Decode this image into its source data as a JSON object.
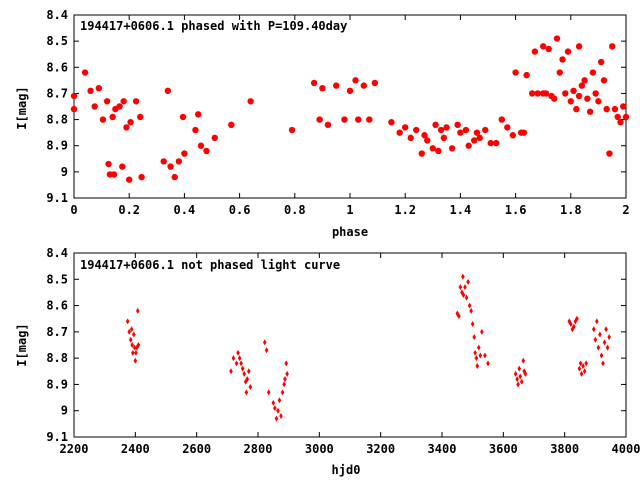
{
  "chart_data": [
    {
      "type": "scatter",
      "title": "194417+0606.1 phased with P=109.40day",
      "xlabel": "phase",
      "ylabel": "I[mag]",
      "xlim": [
        0,
        2
      ],
      "ylim": [
        8.4,
        9.1
      ],
      "y_inverted": true,
      "xticks": [
        "0",
        "0.2",
        "0.4",
        "0.6",
        "0.8",
        "1",
        "1.2",
        "1.4",
        "1.6",
        "1.8",
        "2"
      ],
      "xtick_values": [
        0,
        0.2,
        0.4,
        0.6,
        0.8,
        1.0,
        1.2,
        1.4,
        1.6,
        1.8,
        2.0
      ],
      "yticks": [
        "8.4",
        "8.5",
        "8.6",
        "8.7",
        "8.8",
        "8.9",
        "9",
        "9.1"
      ],
      "ytick_values": [
        8.4,
        8.5,
        8.6,
        8.7,
        8.8,
        8.9,
        9.0,
        9.1
      ],
      "marker": "filled-circle",
      "color": "#ff0000",
      "points": [
        [
          0.0,
          8.71
        ],
        [
          0.0,
          8.76
        ],
        [
          0.04,
          8.62
        ],
        [
          0.06,
          8.69
        ],
        [
          0.075,
          8.75
        ],
        [
          0.09,
          8.68
        ],
        [
          0.105,
          8.8
        ],
        [
          0.12,
          8.73
        ],
        [
          0.125,
          8.97
        ],
        [
          0.13,
          9.01
        ],
        [
          0.14,
          8.79
        ],
        [
          0.145,
          9.01
        ],
        [
          0.15,
          8.76
        ],
        [
          0.165,
          8.75
        ],
        [
          0.175,
          8.98
        ],
        [
          0.18,
          8.73
        ],
        [
          0.19,
          8.83
        ],
        [
          0.2,
          9.03
        ],
        [
          0.205,
          8.81
        ],
        [
          0.225,
          8.73
        ],
        [
          0.24,
          8.79
        ],
        [
          0.245,
          9.02
        ],
        [
          0.325,
          8.96
        ],
        [
          0.34,
          8.69
        ],
        [
          0.35,
          8.98
        ],
        [
          0.365,
          9.02
        ],
        [
          0.38,
          8.96
        ],
        [
          0.395,
          8.79
        ],
        [
          0.4,
          8.93
        ],
        [
          0.44,
          8.84
        ],
        [
          0.45,
          8.78
        ],
        [
          0.46,
          8.9
        ],
        [
          0.48,
          8.92
        ],
        [
          0.51,
          8.87
        ],
        [
          0.57,
          8.82
        ],
        [
          0.64,
          8.73
        ],
        [
          0.79,
          8.84
        ],
        [
          0.87,
          8.66
        ],
        [
          0.89,
          8.8
        ],
        [
          0.9,
          8.68
        ],
        [
          0.92,
          8.82
        ],
        [
          0.95,
          8.67
        ],
        [
          0.98,
          8.8
        ],
        [
          1.0,
          8.69
        ],
        [
          1.02,
          8.65
        ],
        [
          1.03,
          8.8
        ],
        [
          1.05,
          8.67
        ],
        [
          1.07,
          8.8
        ],
        [
          1.09,
          8.66
        ],
        [
          1.15,
          8.81
        ],
        [
          1.18,
          8.85
        ],
        [
          1.2,
          8.83
        ],
        [
          1.22,
          8.87
        ],
        [
          1.24,
          8.84
        ],
        [
          1.26,
          8.93
        ],
        [
          1.27,
          8.86
        ],
        [
          1.28,
          8.88
        ],
        [
          1.3,
          8.91
        ],
        [
          1.31,
          8.82
        ],
        [
          1.32,
          8.92
        ],
        [
          1.33,
          8.84
        ],
        [
          1.34,
          8.87
        ],
        [
          1.35,
          8.83
        ],
        [
          1.37,
          8.91
        ],
        [
          1.39,
          8.82
        ],
        [
          1.4,
          8.85
        ],
        [
          1.42,
          8.84
        ],
        [
          1.43,
          8.9
        ],
        [
          1.45,
          8.88
        ],
        [
          1.46,
          8.85
        ],
        [
          1.47,
          8.87
        ],
        [
          1.49,
          8.84
        ],
        [
          1.51,
          8.89
        ],
        [
          1.53,
          8.89
        ],
        [
          1.55,
          8.8
        ],
        [
          1.57,
          8.83
        ],
        [
          1.59,
          8.86
        ],
        [
          1.6,
          8.62
        ],
        [
          1.62,
          8.85
        ],
        [
          1.63,
          8.85
        ],
        [
          1.64,
          8.63
        ],
        [
          1.66,
          8.7
        ],
        [
          1.67,
          8.54
        ],
        [
          1.68,
          8.7
        ],
        [
          1.7,
          8.52
        ],
        [
          1.7,
          8.7
        ],
        [
          1.71,
          8.7
        ],
        [
          1.72,
          8.53
        ],
        [
          1.73,
          8.71
        ],
        [
          1.74,
          8.72
        ],
        [
          1.75,
          8.49
        ],
        [
          1.76,
          8.62
        ],
        [
          1.77,
          8.57
        ],
        [
          1.78,
          8.7
        ],
        [
          1.79,
          8.54
        ],
        [
          1.8,
          8.73
        ],
        [
          1.81,
          8.69
        ],
        [
          1.82,
          8.76
        ],
        [
          1.83,
          8.52
        ],
        [
          1.83,
          8.71
        ],
        [
          1.84,
          8.67
        ],
        [
          1.85,
          8.65
        ],
        [
          1.86,
          8.72
        ],
        [
          1.87,
          8.77
        ],
        [
          1.88,
          8.62
        ],
        [
          1.89,
          8.7
        ],
        [
          1.9,
          8.73
        ],
        [
          1.91,
          8.58
        ],
        [
          1.92,
          8.65
        ],
        [
          1.93,
          8.76
        ],
        [
          1.94,
          8.93
        ],
        [
          1.95,
          8.52
        ],
        [
          1.96,
          8.76
        ],
        [
          1.97,
          8.79
        ],
        [
          1.98,
          8.81
        ],
        [
          1.99,
          8.75
        ],
        [
          2.0,
          8.79
        ]
      ]
    },
    {
      "type": "scatter",
      "title": "194417+0606.1 not phased light curve",
      "xlabel": "hjd0",
      "ylabel": "I[mag]",
      "xlim": [
        2200,
        4000
      ],
      "ylim": [
        8.4,
        9.1
      ],
      "y_inverted": true,
      "xticks": [
        "2200",
        "2400",
        "2600",
        "2800",
        "3000",
        "3200",
        "3400",
        "3600",
        "3800",
        "4000"
      ],
      "xtick_values": [
        2200,
        2400,
        2600,
        2800,
        3000,
        3200,
        3400,
        3600,
        3800,
        4000
      ],
      "yticks": [
        "8.4",
        "8.5",
        "8.6",
        "8.7",
        "8.8",
        "8.9",
        "9",
        "9.1"
      ],
      "ytick_values": [
        8.4,
        8.5,
        8.6,
        8.7,
        8.8,
        8.9,
        9.0,
        9.1
      ],
      "marker": "small-diamond",
      "color": "#ff0000",
      "points": [
        [
          2375,
          8.66
        ],
        [
          2380,
          8.7
        ],
        [
          2385,
          8.73
        ],
        [
          2388,
          8.69
        ],
        [
          2390,
          8.75
        ],
        [
          2392,
          8.78
        ],
        [
          2395,
          8.71
        ],
        [
          2398,
          8.76
        ],
        [
          2400,
          8.81
        ],
        [
          2402,
          8.78
        ],
        [
          2405,
          8.76
        ],
        [
          2408,
          8.62
        ],
        [
          2410,
          8.75
        ],
        [
          2712,
          8.85
        ],
        [
          2720,
          8.8
        ],
        [
          2730,
          8.82
        ],
        [
          2735,
          8.78
        ],
        [
          2740,
          8.8
        ],
        [
          2745,
          8.82
        ],
        [
          2750,
          8.84
        ],
        [
          2755,
          8.86
        ],
        [
          2760,
          8.89
        ],
        [
          2762,
          8.93
        ],
        [
          2765,
          8.88
        ],
        [
          2770,
          8.85
        ],
        [
          2775,
          8.91
        ],
        [
          2822,
          8.74
        ],
        [
          2828,
          8.77
        ],
        [
          2835,
          8.93
        ],
        [
          2850,
          8.97
        ],
        [
          2855,
          8.99
        ],
        [
          2860,
          9.03
        ],
        [
          2865,
          9.0
        ],
        [
          2870,
          8.96
        ],
        [
          2875,
          9.02
        ],
        [
          2880,
          8.93
        ],
        [
          2885,
          8.9
        ],
        [
          2888,
          8.88
        ],
        [
          2892,
          8.82
        ],
        [
          2895,
          8.86
        ],
        [
          3450,
          8.63
        ],
        [
          3455,
          8.64
        ],
        [
          3460,
          8.53
        ],
        [
          3465,
          8.55
        ],
        [
          3468,
          8.49
        ],
        [
          3470,
          8.56
        ],
        [
          3475,
          8.53
        ],
        [
          3480,
          8.57
        ],
        [
          3485,
          8.51
        ],
        [
          3490,
          8.6
        ],
        [
          3495,
          8.62
        ],
        [
          3500,
          8.67
        ],
        [
          3505,
          8.72
        ],
        [
          3508,
          8.78
        ],
        [
          3512,
          8.8
        ],
        [
          3515,
          8.83
        ],
        [
          3520,
          8.76
        ],
        [
          3525,
          8.79
        ],
        [
          3530,
          8.7
        ],
        [
          3540,
          8.79
        ],
        [
          3550,
          8.82
        ],
        [
          3640,
          8.86
        ],
        [
          3645,
          8.88
        ],
        [
          3648,
          8.9
        ],
        [
          3652,
          8.84
        ],
        [
          3655,
          8.87
        ],
        [
          3660,
          8.89
        ],
        [
          3665,
          8.81
        ],
        [
          3668,
          8.85
        ],
        [
          3672,
          8.86
        ],
        [
          3815,
          8.66
        ],
        [
          3820,
          8.67
        ],
        [
          3825,
          8.69
        ],
        [
          3830,
          8.68
        ],
        [
          3835,
          8.66
        ],
        [
          3840,
          8.65
        ],
        [
          3848,
          8.84
        ],
        [
          3852,
          8.82
        ],
        [
          3855,
          8.86
        ],
        [
          3860,
          8.83
        ],
        [
          3865,
          8.85
        ],
        [
          3870,
          8.82
        ],
        [
          3895,
          8.69
        ],
        [
          3900,
          8.73
        ],
        [
          3905,
          8.66
        ],
        [
          3910,
          8.76
        ],
        [
          3915,
          8.71
        ],
        [
          3920,
          8.79
        ],
        [
          3925,
          8.82
        ],
        [
          3930,
          8.74
        ],
        [
          3935,
          8.69
        ],
        [
          3940,
          8.76
        ],
        [
          3945,
          8.72
        ]
      ]
    }
  ]
}
